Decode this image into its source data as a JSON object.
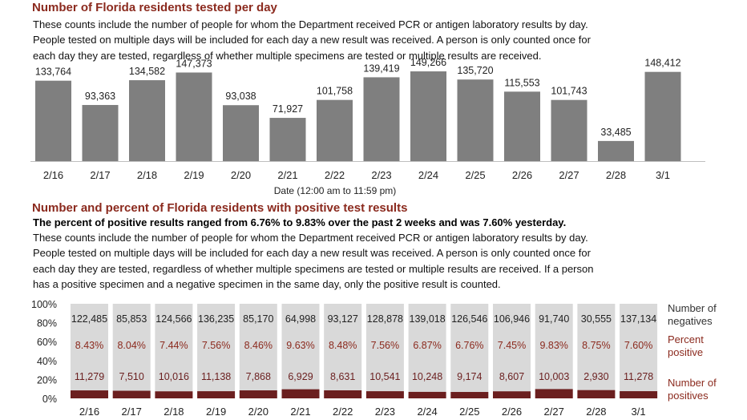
{
  "section1": {
    "title": "Number of Florida residents tested per day",
    "description": [
      "These counts include the number of people for whom the Department received PCR or antigen laboratory results by day.",
      "People tested on multiple days will be included for each day a new result was received. A person is only counted once for",
      "each day they are tested, regardless of whether multiple specimens are tested or multiple results are received."
    ]
  },
  "section2": {
    "title": "Number and percent of Florida residents with positive test results",
    "highlight": "The percent of positive results ranged from 6.76% to 9.83% over the past 2 weeks and was 7.60% yesterday.",
    "description": [
      "These counts include the number of people for whom the Department received PCR or antigen laboratory results by day.",
      "People tested on multiple days will be included for each day a new result was received. A person is only counted once for",
      "each day they are tested, regardless of whether multiple specimens are tested or multiple results are received. If a person",
      "has a positive specimen and a negative specimen in the same day, only the positive result is counted."
    ]
  },
  "colors": {
    "title": "#8b2a1e",
    "bar": "#7f7f7f",
    "negative": "#d9d9d9",
    "positive": "#6b1f1f",
    "legend": "#8b2a1e"
  },
  "chart_data": [
    {
      "type": "bar",
      "title": "Number of Florida residents tested per day",
      "xlabel": "Date (12:00 am to 11:59 pm)",
      "categories": [
        "2/16",
        "2/17",
        "2/18",
        "2/19",
        "2/20",
        "2/21",
        "2/22",
        "2/23",
        "2/24",
        "2/25",
        "2/26",
        "2/27",
        "2/28",
        "3/1"
      ],
      "values": [
        133764,
        93363,
        134582,
        147373,
        93038,
        71927,
        101758,
        139419,
        149266,
        135720,
        115553,
        101743,
        33485,
        148412
      ],
      "labels": [
        "133,764",
        "93,363",
        "134,582",
        "147,373",
        "93,038",
        "71,927",
        "101,758",
        "139,419",
        "149,266",
        "135,720",
        "115,553",
        "101,743",
        "33,485",
        "148,412"
      ]
    },
    {
      "type": "bar",
      "stacked": "percent",
      "categories": [
        "2/16",
        "2/17",
        "2/18",
        "2/19",
        "2/20",
        "2/21",
        "2/22",
        "2/23",
        "2/24",
        "2/25",
        "2/26",
        "2/27",
        "2/28",
        "3/1"
      ],
      "ylim": [
        0,
        100
      ],
      "yticks": [
        "0%",
        "20%",
        "40%",
        "60%",
        "80%",
        "100%"
      ],
      "series": [
        {
          "name": "Number of negatives",
          "values": [
            122485,
            85853,
            124566,
            136235,
            85170,
            64998,
            93127,
            128878,
            139018,
            126546,
            106946,
            91740,
            30555,
            137134
          ],
          "labels": [
            "122,485",
            "85,853",
            "124,566",
            "136,235",
            "85,170",
            "64,998",
            "93,127",
            "128,878",
            "139,018",
            "126,546",
            "106,946",
            "91,740",
            "30,555",
            "137,134"
          ]
        },
        {
          "name": "Number of positives",
          "values": [
            11279,
            7510,
            10016,
            11138,
            7868,
            6929,
            8631,
            10541,
            10248,
            9174,
            8607,
            10003,
            2930,
            11278
          ],
          "labels": [
            "11,279",
            "7,510",
            "10,016",
            "11,138",
            "7,868",
            "6,929",
            "8,631",
            "10,541",
            "10,248",
            "9,174",
            "8,607",
            "10,003",
            "2,930",
            "11,278"
          ]
        }
      ],
      "percent_positive": {
        "name": "Percent positive",
        "values": [
          8.43,
          8.04,
          7.44,
          7.56,
          8.46,
          9.63,
          8.48,
          7.56,
          6.87,
          6.76,
          7.45,
          9.83,
          8.75,
          7.6
        ],
        "labels": [
          "8.43%",
          "8.04%",
          "7.44%",
          "7.56%",
          "8.46%",
          "9.63%",
          "8.48%",
          "7.56%",
          "6.87%",
          "6.76%",
          "7.45%",
          "9.83%",
          "8.75%",
          "7.60%"
        ]
      },
      "legend": [
        "Number of negatives",
        "Percent positive",
        "Number of positives"
      ]
    }
  ]
}
